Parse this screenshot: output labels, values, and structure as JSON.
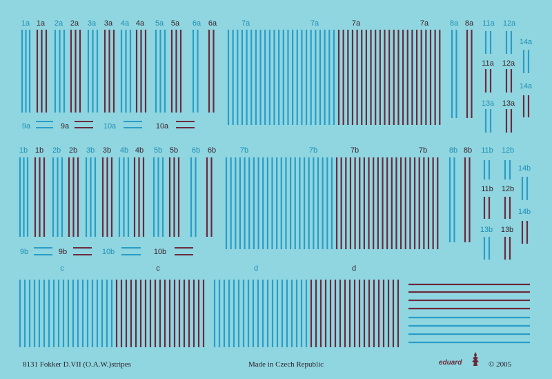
{
  "colors": {
    "background": "#8fd6e0",
    "blue": "#2a9cc6",
    "maroon": "#6b2a3c"
  },
  "labels": {
    "r1": [
      "1a",
      "1a",
      "2a",
      "2a",
      "3a",
      "3a",
      "4a",
      "4a",
      "5a",
      "5a",
      "6a",
      "6a",
      "7a",
      "7a",
      "7a",
      "7a",
      "8a",
      "8a",
      "11a",
      "12a"
    ],
    "r1_side": [
      "14a",
      "11a",
      "12a",
      "14a",
      "13a",
      "13a"
    ],
    "r1_small": [
      "9a",
      "9a",
      "10a",
      "10a"
    ],
    "r2": [
      "1b",
      "1b",
      "2b",
      "2b",
      "3b",
      "3b",
      "4b",
      "4b",
      "5b",
      "5b",
      "6b",
      "6b",
      "7b",
      "7b",
      "7b",
      "7b",
      "8b",
      "8b",
      "11b",
      "12b"
    ],
    "r2_side": [
      "14b",
      "11b",
      "12b",
      "14b",
      "13b",
      "13b"
    ],
    "r2_small": [
      "9b",
      "9b",
      "10b",
      "10b"
    ],
    "r3": [
      "c",
      "c",
      "d",
      "d"
    ]
  },
  "footer": {
    "title": "8131 Fokker D.VII (O.A.W.)stripes",
    "made_in": "Made in Czech Republic",
    "brand": "eduard",
    "copyright": "© 2005"
  }
}
